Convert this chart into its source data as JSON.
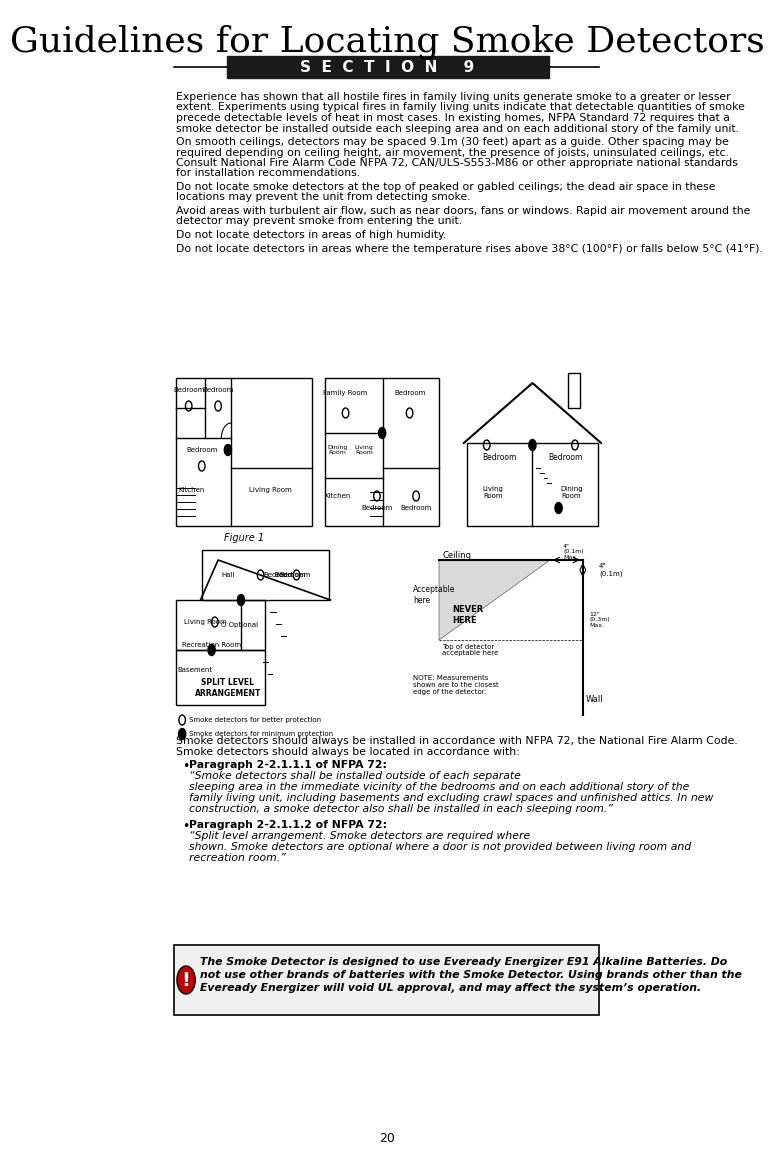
{
  "title": "Guidelines for Locating Smoke Detectors",
  "section_label": "S  E  C  T  I  O  N     9",
  "page_number": "20",
  "background_color": "#ffffff",
  "text_color": "#000000",
  "section_bg": "#1a1a1a",
  "section_fg": "#ffffff",
  "paragraphs": [
    "Experience has shown that all hostile fires in family living units generate smoke to a greater or lesser\nextent. Experiments using typical fires in family living units indicate that detectable quantities of smoke\nprecede detectable levels of heat in most cases. In existing homes, NFPA Standard 72 requires that a\nsmoke detector be installed outside each sleeping area and on each additional story of the family unit.",
    "On smooth ceilings, detectors may be spaced 9.1m (30 feet) apart as a guide. Other spacing may be\nrequired depending on ceiling height, air movement, the presence of joists, uninsulated ceilings, etc.\nConsult National Fire Alarm Code NFPA 72, CAN/ULS-S553-M86 or other appropriate national standards\nfor installation recommendations.",
    "Do not locate smoke detectors at the top of peaked or gabled ceilings; the dead air space in these\nlocations may prevent the unit from detecting smoke.",
    "Avoid areas with turbulent air flow, such as near doors, fans or windows. Rapid air movement around the\ndetector may prevent smoke from entering the unit.",
    "Do not locate detectors in areas of high humidity.",
    "Do not locate detectors in areas where the temperature rises above 38°C (100°F) or falls below 5°C (41°F)."
  ],
  "bottom_paragraphs": [
    "Smoke detectors should always be installed in accordance with NFPA 72, the National Fire Alarm Code.\nSmoke detectors should always be located in accordance with:"
  ],
  "bullet1_intro": "Paragraph 2-2.1.1.1 of NFPA 72:",
  "bullet1_italic": "“Smoke detectors shall be installed outside of each separate\nsleeping area in the immediate vicinity of the bedrooms and on each additional story of the\nfamily living unit, including basements and excluding crawl spaces and unfinished attics. In new\nconstruction, a smoke detector also shall be installed in each sleeping room.”",
  "bullet2_intro": "Paragraph 2-2.1.1.2 of NFPA 72:",
  "bullet2_italic": "“Split level arrangement. Smoke detectors are required where\nshown. Smoke detectors are optional where a door is not provided between living room and\nrecreation room.”",
  "warning_bold": "The Smoke Detector is designed to use Eveready Energizer E91 Alkaline Batteries. Do\nnot use other brands of batteries with the Smoke Detector. Using brands other than the\nEveready Energizer will void UL approval, and may affect the system’s operation."
}
